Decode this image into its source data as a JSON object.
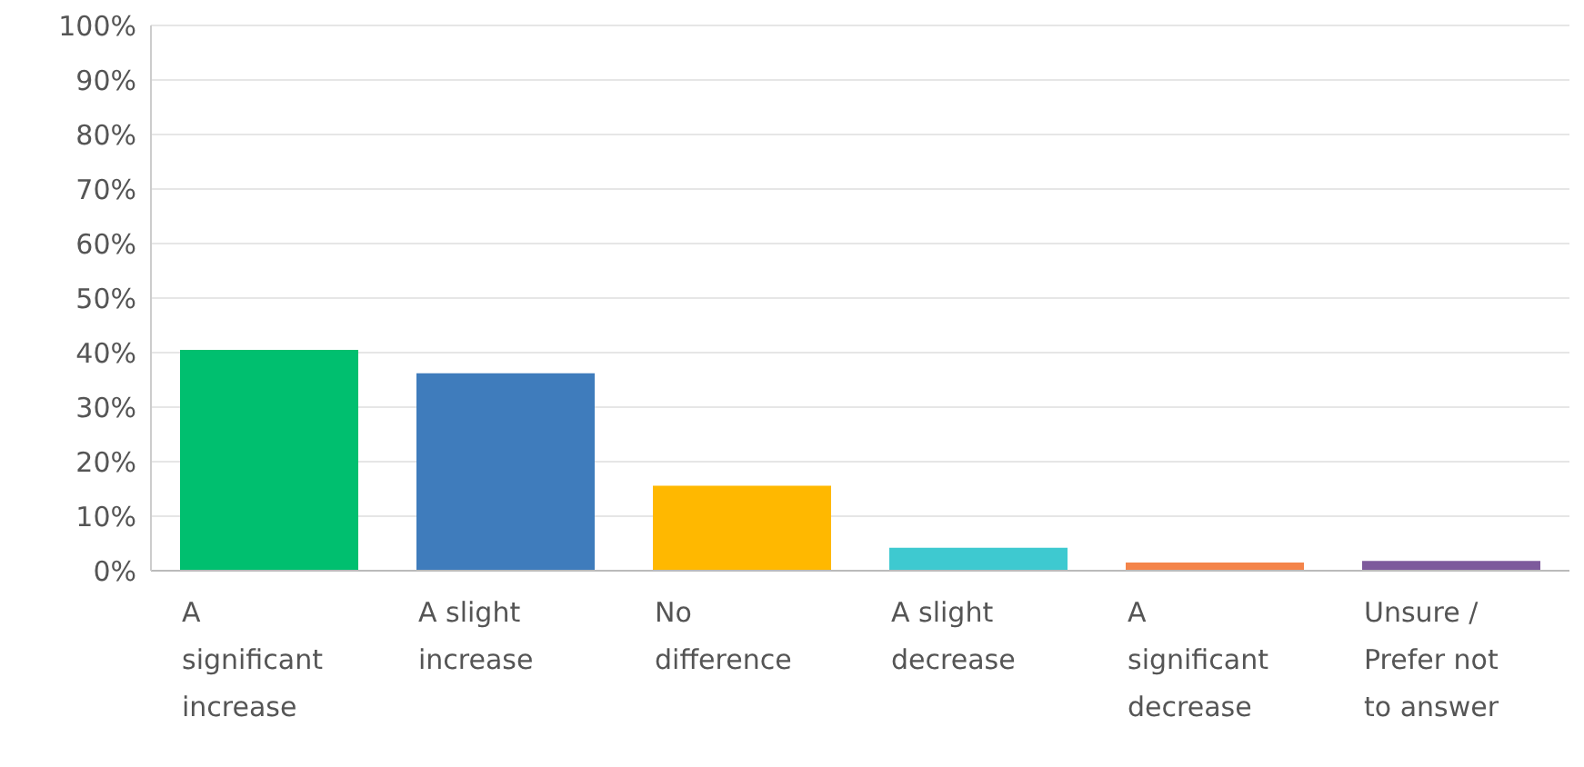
{
  "chart_data": {
    "type": "bar",
    "categories": [
      "A significant increase",
      "A slight increase",
      "No difference",
      "A slight decrease",
      "A significant decrease",
      "Unsure / Prefer not to answer"
    ],
    "values": [
      40.5,
      36.2,
      15.6,
      4.2,
      1.5,
      1.8
    ],
    "colors": [
      "#00bf6f",
      "#3f7cbc",
      "#ffb800",
      "#3ec9d0",
      "#f4844a",
      "#7d5a9c"
    ],
    "ylim": [
      0,
      100
    ],
    "yticks": [
      {
        "value": 0,
        "label": "0%"
      },
      {
        "value": 10,
        "label": "10%"
      },
      {
        "value": 20,
        "label": "20%"
      },
      {
        "value": 30,
        "label": "30%"
      },
      {
        "value": 40,
        "label": "40%"
      },
      {
        "value": 50,
        "label": "50%"
      },
      {
        "value": 60,
        "label": "60%"
      },
      {
        "value": 70,
        "label": "70%"
      },
      {
        "value": 80,
        "label": "80%"
      },
      {
        "value": 90,
        "label": "90%"
      },
      {
        "value": 100,
        "label": "100%"
      }
    ],
    "grid": "y",
    "legend": false
  }
}
